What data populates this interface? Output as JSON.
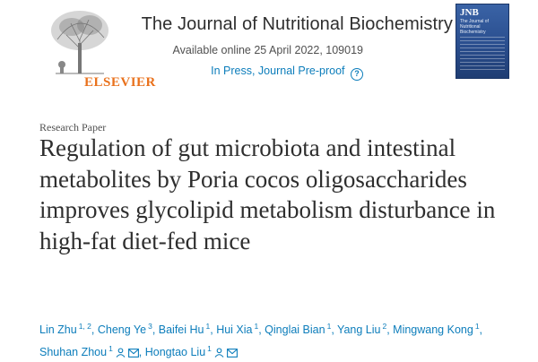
{
  "header": {
    "publisher": "ELSEVIER",
    "journal_title": "The Journal of Nutritional Biochemistry",
    "availability": "Available online 25 April 2022, 109019",
    "status": "In Press, Journal Pre-proof",
    "help_icon": "help-circle-icon",
    "cover": {
      "abbreviation": "JNB",
      "subtitle": "The Journal of Nutritional Biochemistry"
    }
  },
  "article": {
    "type": "Research Paper",
    "title": "Regulation of gut microbiota and intestinal metabolites by Poria cocos oligosaccharides improves glycolipid metabolism disturbance in high-fat diet-fed mice"
  },
  "authors": [
    {
      "name": "Lin Zhu",
      "sup": "1, 2"
    },
    {
      "name": "Cheng Ye",
      "sup": "3"
    },
    {
      "name": "Baifei Hu",
      "sup": "1"
    },
    {
      "name": "Hui Xia",
      "sup": "1"
    },
    {
      "name": "Qinglai Bian",
      "sup": "1"
    },
    {
      "name": "Yang Liu",
      "sup": "2"
    },
    {
      "name": "Mingwang Kong",
      "sup": "1"
    },
    {
      "name": "Shuhan Zhou",
      "sup": "1"
    },
    {
      "name": "Hongtao Liu",
      "sup": "1"
    }
  ],
  "icons": {
    "person": "person-icon",
    "email": "email-icon"
  },
  "colors": {
    "link": "#0c7dbb",
    "elsevier_orange": "#e9711c",
    "text": "#2e2e2e"
  }
}
